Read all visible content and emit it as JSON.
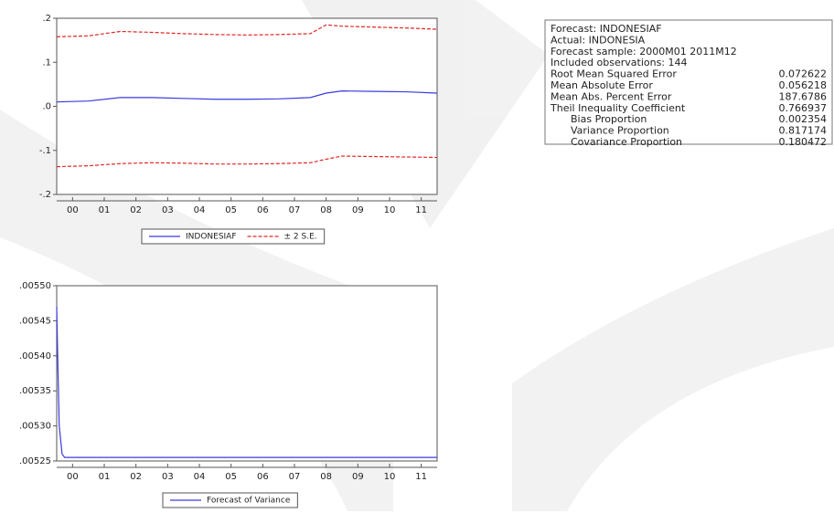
{
  "chart_data": [
    {
      "type": "line",
      "x": [
        0,
        1,
        2,
        3,
        4,
        5,
        6,
        7,
        8,
        8.5,
        9,
        10,
        11,
        12
      ],
      "xlim": [
        0,
        12
      ],
      "xticks": [
        {
          "value": 0.5,
          "label": "00"
        },
        {
          "value": 1.5,
          "label": "01"
        },
        {
          "value": 2.5,
          "label": "02"
        },
        {
          "value": 3.5,
          "label": "03"
        },
        {
          "value": 4.5,
          "label": "04"
        },
        {
          "value": 5.5,
          "label": "05"
        },
        {
          "value": 6.5,
          "label": "06"
        },
        {
          "value": 7.5,
          "label": "07"
        },
        {
          "value": 8.5,
          "label": "08"
        },
        {
          "value": 9.5,
          "label": "09"
        },
        {
          "value": 10.5,
          "label": "10"
        },
        {
          "value": 11.5,
          "label": "11"
        }
      ],
      "ylim": [
        -0.2,
        0.2
      ],
      "yticks": [
        {
          "value": 0.2,
          "label": ".2"
        },
        {
          "value": 0.1,
          "label": ".1"
        },
        {
          "value": 0,
          "label": ".0"
        },
        {
          "value": -0.1,
          "label": "-.1"
        },
        {
          "value": -0.2,
          "label": "-.2"
        }
      ],
      "series": [
        {
          "name": "INDONESIAF",
          "color": "#3a3ae0",
          "values": [
            0.01,
            0.012,
            0.02,
            0.02,
            0.018,
            0.016,
            0.016,
            0.017,
            0.02,
            0.03,
            0.035,
            0.034,
            0.033,
            0.03
          ]
        },
        {
          "name": "± 2 S.E.",
          "color": "#e02828",
          "dashed": true,
          "values": [
            0.158,
            0.16,
            0.17,
            0.168,
            0.165,
            0.163,
            0.162,
            0.163,
            0.165,
            0.185,
            0.182,
            0.18,
            0.178,
            0.175
          ],
          "lower": [
            -0.137,
            -0.135,
            -0.13,
            -0.128,
            -0.129,
            -0.131,
            -0.131,
            -0.13,
            -0.128,
            -0.12,
            -0.113,
            -0.114,
            -0.115,
            -0.116
          ]
        }
      ]
    },
    {
      "type": "line",
      "x": [
        0,
        0.04,
        0.08,
        0.17,
        0.25,
        0.5,
        12
      ],
      "xlim": [
        0,
        12
      ],
      "xticks": [
        {
          "value": 0.5,
          "label": "00"
        },
        {
          "value": 1.5,
          "label": "01"
        },
        {
          "value": 2.5,
          "label": "02"
        },
        {
          "value": 3.5,
          "label": "03"
        },
        {
          "value": 4.5,
          "label": "04"
        },
        {
          "value": 5.5,
          "label": "05"
        },
        {
          "value": 6.5,
          "label": "06"
        },
        {
          "value": 7.5,
          "label": "07"
        },
        {
          "value": 8.5,
          "label": "08"
        },
        {
          "value": 9.5,
          "label": "09"
        },
        {
          "value": 10.5,
          "label": "10"
        },
        {
          "value": 11.5,
          "label": "11"
        }
      ],
      "ylim": [
        0.00525,
        0.0055
      ],
      "yticks": [
        {
          "value": 0.0055,
          "label": ".00550"
        },
        {
          "value": 0.00545,
          "label": ".00545"
        },
        {
          "value": 0.0054,
          "label": ".00540"
        },
        {
          "value": 0.00535,
          "label": ".00535"
        },
        {
          "value": 0.0053,
          "label": ".00530"
        },
        {
          "value": 0.00525,
          "label": ".00525"
        }
      ],
      "series": [
        {
          "name": "Forecast of Variance",
          "color": "#3a3ae0",
          "values": [
            0.00547,
            0.00538,
            0.0053,
            0.00526,
            0.005255,
            0.005255,
            0.005255
          ]
        }
      ]
    }
  ],
  "stats": {
    "lines": [
      "Forecast: INDONESIAF",
      "Actual: INDONESIA",
      "Forecast sample: 2000M01 2011M12",
      "Included observations: 144"
    ],
    "rows": [
      {
        "label": "Root Mean Squared Error",
        "value": 0.072622
      },
      {
        "label": "Mean Absolute Error",
        "value": 0.056218
      },
      {
        "label": "Mean Abs. Percent Error",
        "value": 187.6786
      },
      {
        "label": "Theil Inequality Coefficient",
        "value": 0.766937
      },
      {
        "label": "Bias Proportion",
        "value": 0.002354,
        "indent": true
      },
      {
        "label": "Variance Proportion",
        "value": 0.817174,
        "indent": true
      },
      {
        "label": "Covariance Proportion",
        "value": 0.180472,
        "indent": true
      }
    ]
  }
}
